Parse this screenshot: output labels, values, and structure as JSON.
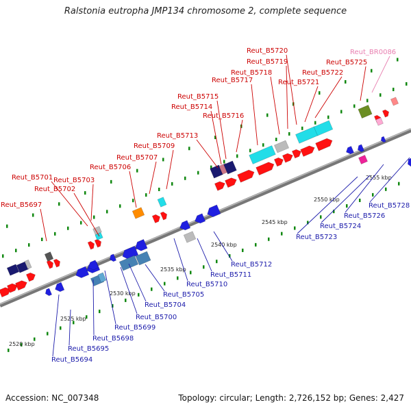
{
  "header": {
    "title": "Ralstonia eutropha JMP134 chromosome 2, complete sequence"
  },
  "footer": {
    "accession": "Accession: NC_007348",
    "summary": "Topology: circular; Length: 2,726,152 bp; Genes: 2,427"
  },
  "colors": {
    "forward_label": "#cc0000",
    "reverse_label": "#1a1aaa",
    "pseudo_label": "#e87fb0",
    "backbone": "#8c8c8c",
    "tick": "#118811"
  },
  "scale": {
    "labels": [
      "2520 kbp",
      "2525 kbp",
      "2530 kbp",
      "2535 kbp",
      "2540 kbp",
      "2545 kbp",
      "2550 kbp",
      "2555 kbp"
    ]
  },
  "genes_forward": [
    {
      "label": "Reut_B5697",
      "color": "#ff1111"
    },
    {
      "label": "Reut_B5701",
      "color": "#ff1111"
    },
    {
      "label": "Reut_B5702",
      "color": "#ff1111"
    },
    {
      "label": "Reut_B5703",
      "color": "#ff1111"
    },
    {
      "label": "Reut_B5706",
      "color": "#ff1111"
    },
    {
      "label": "Reut_B5707",
      "color": "#ff1111"
    },
    {
      "label": "Reut_B5709",
      "color": "#ff1111"
    },
    {
      "label": "Reut_B5713",
      "color": "#ff1111"
    },
    {
      "label": "Reut_B5714",
      "color": "#ff1111"
    },
    {
      "label": "Reut_B5715",
      "color": "#ff1111"
    },
    {
      "label": "Reut_B5716",
      "color": "#ff1111"
    },
    {
      "label": "Reut_B5717",
      "color": "#ff1111"
    },
    {
      "label": "Reut_B5718",
      "color": "#ff1111"
    },
    {
      "label": "Reut_B5719",
      "color": "#ff1111"
    },
    {
      "label": "Reut_B5720",
      "color": "#ff1111"
    },
    {
      "label": "Reut_B5721",
      "color": "#ff1111"
    },
    {
      "label": "Reut_B5722",
      "color": "#ff1111"
    },
    {
      "label": "Reut_B5725",
      "color": "#ff1111"
    },
    {
      "label": "Reut_BR0086",
      "color": "#ffaad4"
    }
  ],
  "genes_reverse": [
    {
      "label": "Reut_B5694"
    },
    {
      "label": "Reut_B5695"
    },
    {
      "label": "Reut_B5698"
    },
    {
      "label": "Reut_B5699"
    },
    {
      "label": "Reut_B5700"
    },
    {
      "label": "Reut_B5704"
    },
    {
      "label": "Reut_B5705"
    },
    {
      "label": "Reut_B5710"
    },
    {
      "label": "Reut_B5711"
    },
    {
      "label": "Reut_B5712"
    },
    {
      "label": "Reut_B5723"
    },
    {
      "label": "Reut_B5724"
    },
    {
      "label": "Reut_B5726"
    },
    {
      "label": "Reut_B5728"
    }
  ]
}
